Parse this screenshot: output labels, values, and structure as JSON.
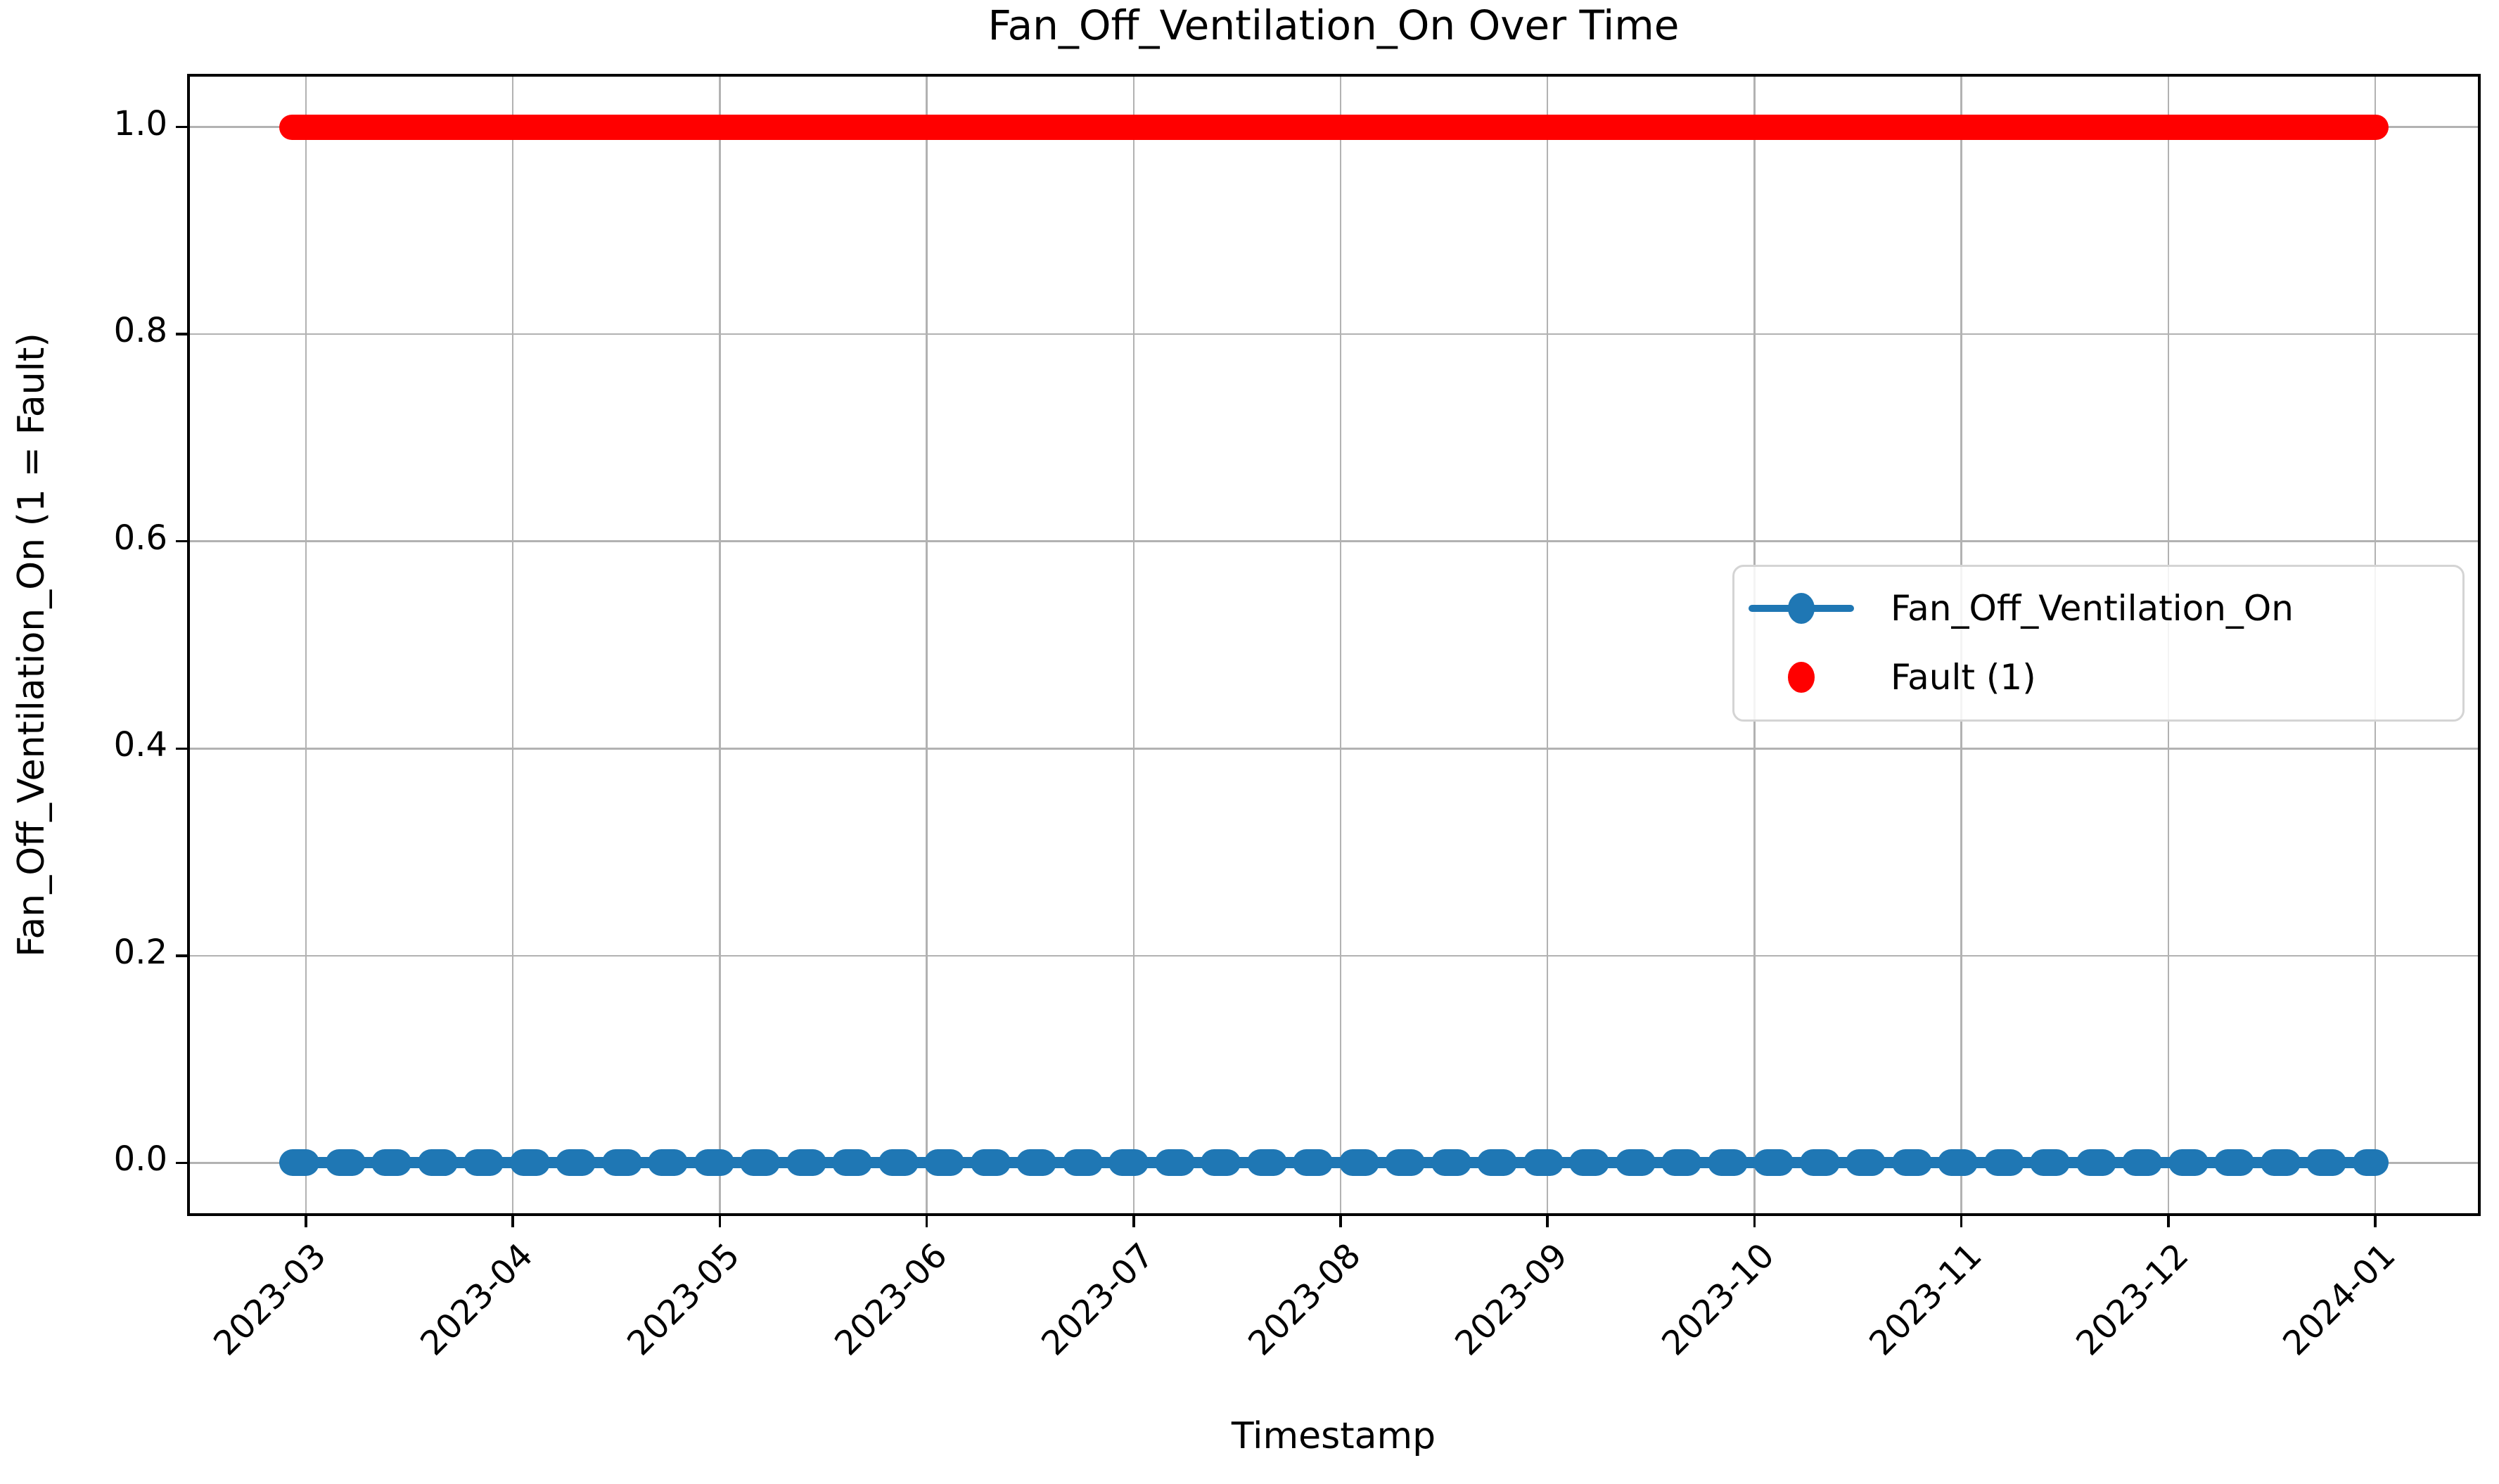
{
  "chart_data": {
    "type": "line",
    "title": "Fan_Off_Ventilation_On Over Time",
    "xlabel": "Timestamp",
    "ylabel": "Fan_Off_Ventilation_On (1 = Fault)",
    "x_tick_labels": [
      "2023-03",
      "2023-04",
      "2023-05",
      "2023-06",
      "2023-07",
      "2023-08",
      "2023-09",
      "2023-10",
      "2023-11",
      "2023-12",
      "2024-01"
    ],
    "y_tick_labels": [
      "0.0",
      "0.2",
      "0.4",
      "0.6",
      "0.8",
      "1.0"
    ],
    "ylim": [
      -0.05,
      1.05
    ],
    "grid": true,
    "grid_color": "#b2b2b2",
    "background_color": "#ffffff",
    "legend": {
      "position": "center-right",
      "entries": [
        {
          "label": "Fan_Off_Ventilation_On",
          "color": "#1f77b4",
          "marker": "circle",
          "has_line": true
        },
        {
          "label": "Fault (1)",
          "color": "#ff0000",
          "marker": "circle",
          "has_line": false
        }
      ]
    },
    "series": [
      {
        "name": "Fan_Off_Ventilation_On",
        "style": "line-with-circle-markers",
        "color": "#1f77b4",
        "constant_value": 0.0,
        "x_start": "2023-02-25",
        "x_end": "2024-01-01"
      },
      {
        "name": "Fault (1)",
        "style": "scatter",
        "color": "#ff0000",
        "constant_value": 1.0,
        "x_start": "2023-02-25",
        "x_end": "2024-01-01"
      }
    ]
  }
}
